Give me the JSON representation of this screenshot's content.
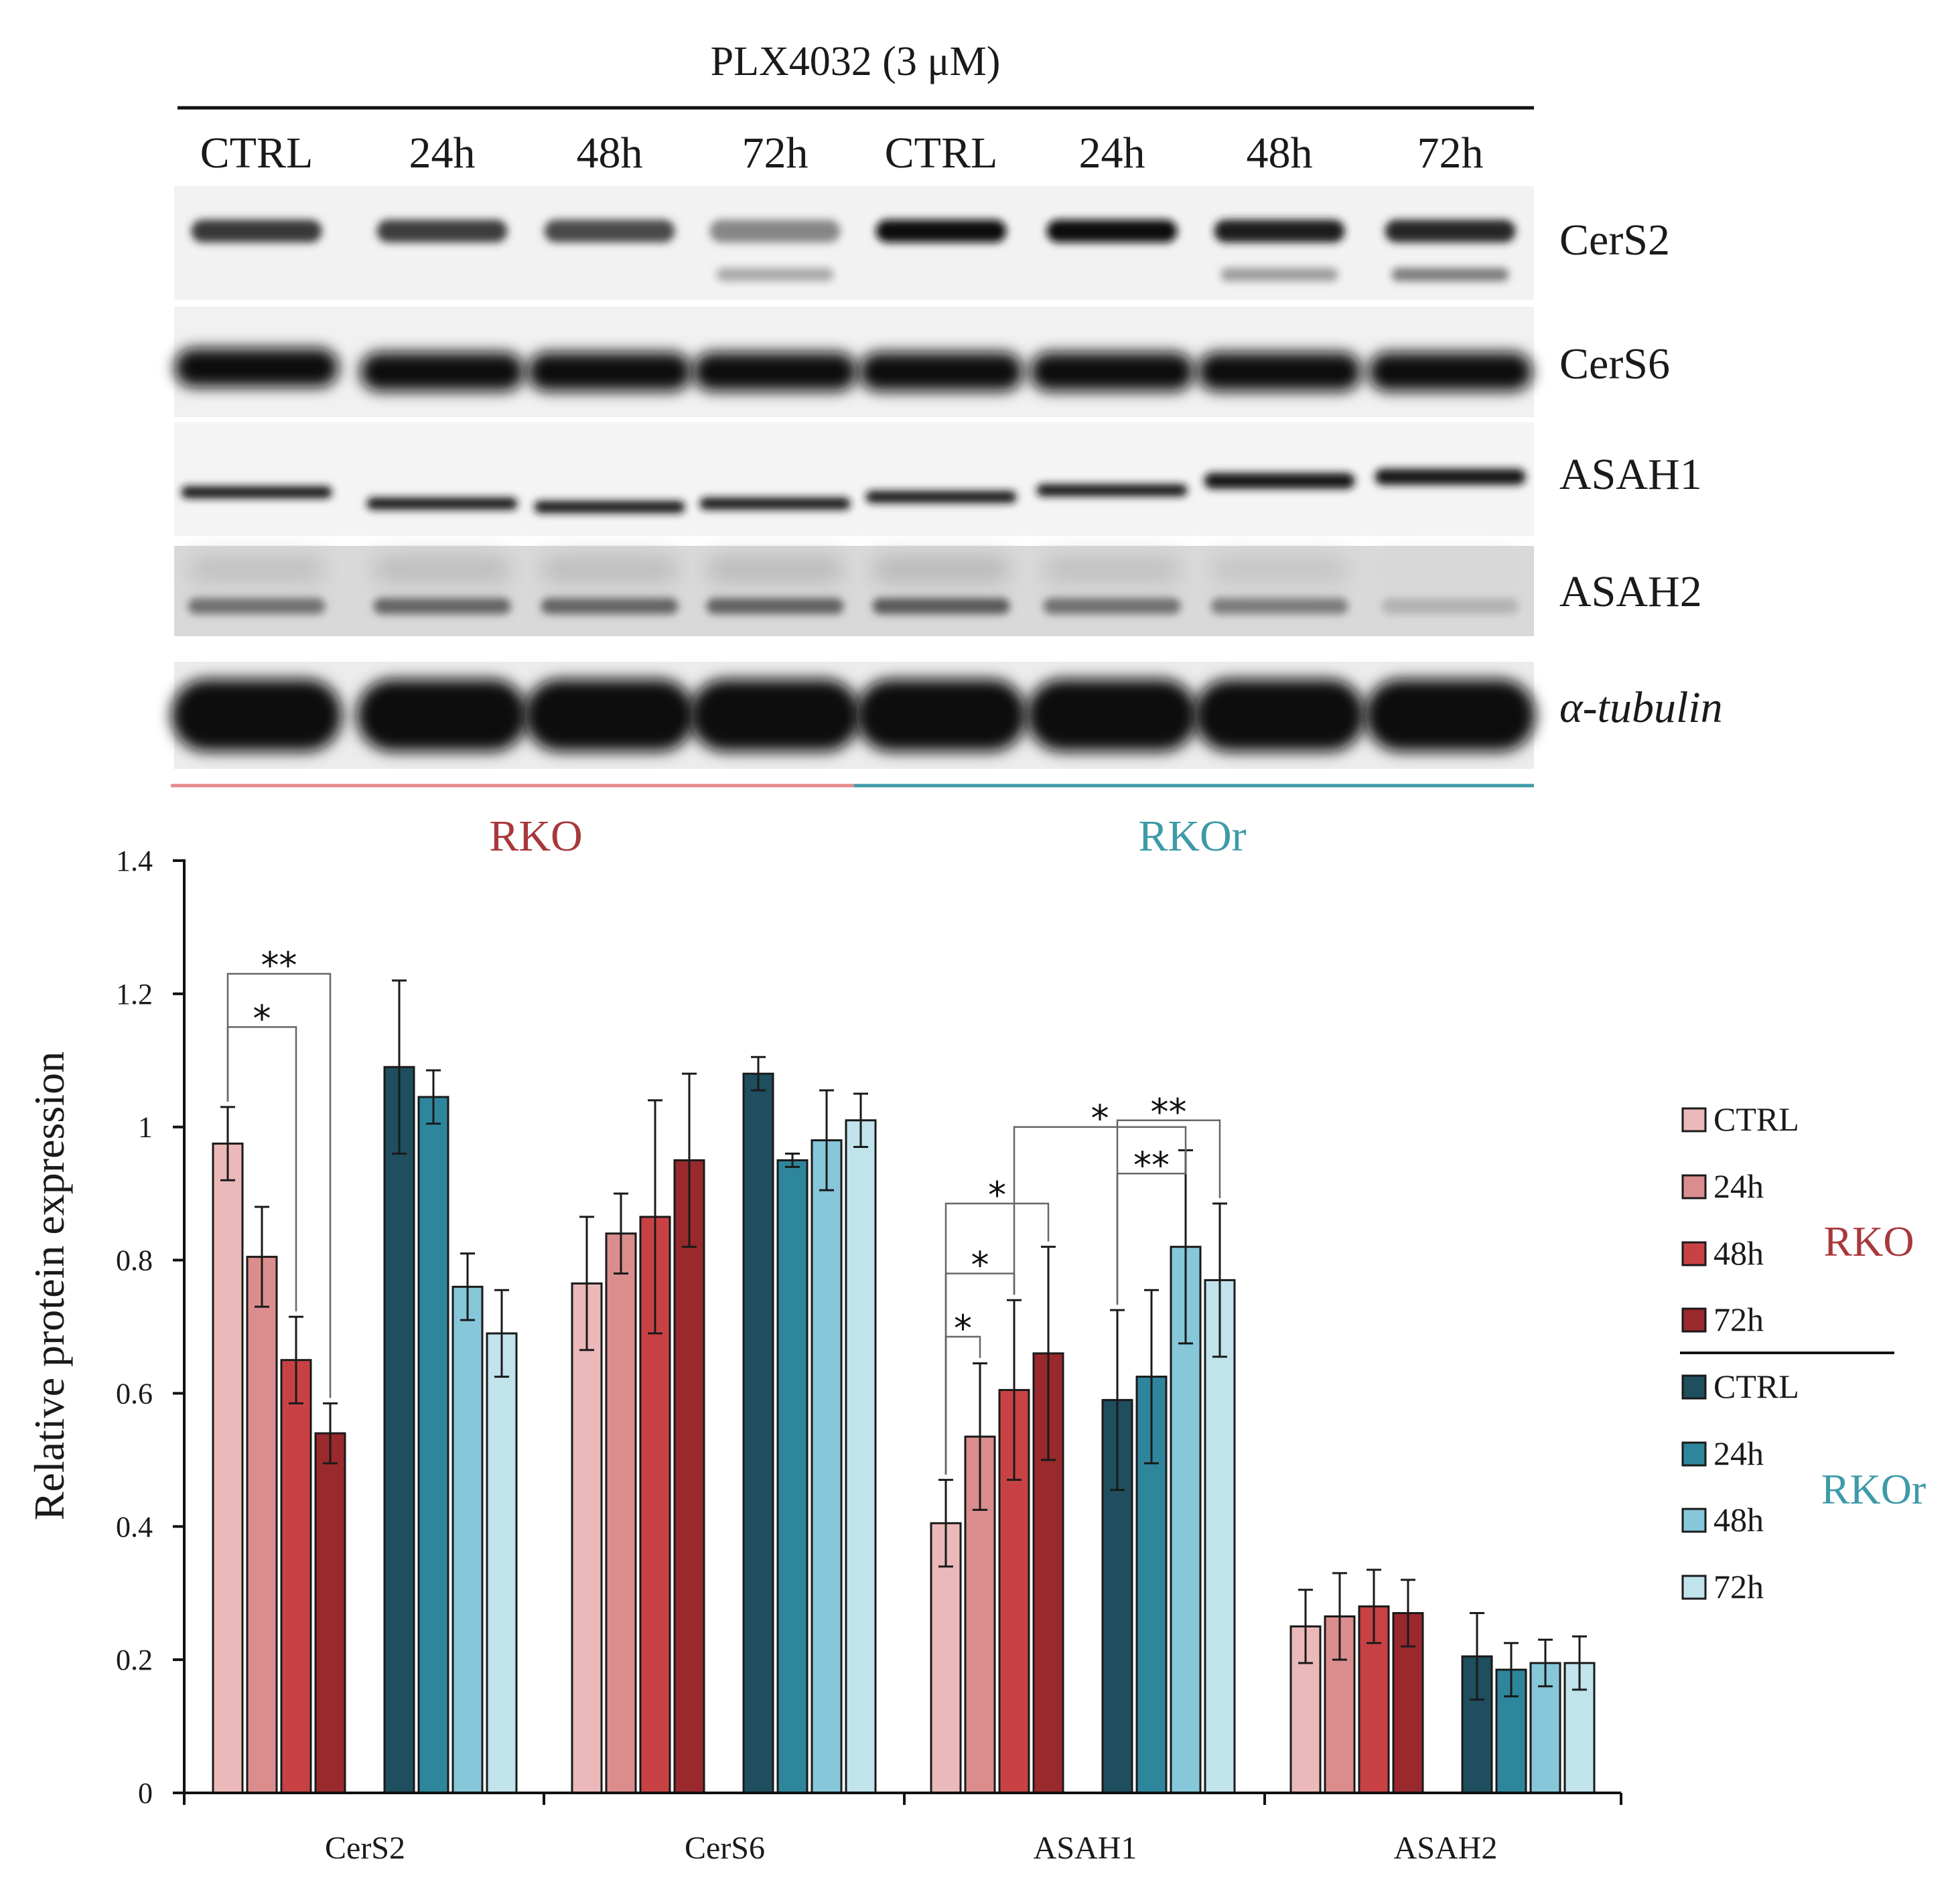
{
  "blot": {
    "treatment_label": "PLX4032 (3 μM)",
    "lane_labels": [
      "CTRL",
      "24h",
      "48h",
      "72h",
      "CTRL",
      "24h",
      "48h",
      "72h"
    ],
    "rows": [
      {
        "name": "CerS2",
        "kind": "cers2"
      },
      {
        "name": "CerS6",
        "kind": "cers6"
      },
      {
        "name": "ASAH1",
        "kind": "asah1"
      },
      {
        "name": "ASAH2",
        "kind": "asah2"
      },
      {
        "name": "α-tubulin",
        "kind": "tubulin"
      }
    ],
    "intensity": {
      "cers2": [
        0.8,
        0.78,
        0.72,
        0.45,
        0.97,
        0.97,
        0.93,
        0.88
      ],
      "cers2_lower": [
        0.0,
        0.0,
        0.0,
        0.3,
        0.0,
        0.0,
        0.35,
        0.5
      ],
      "asah2": [
        0.55,
        0.6,
        0.6,
        0.62,
        0.65,
        0.55,
        0.5,
        0.25
      ]
    },
    "group_labels": [
      {
        "label": "RKO",
        "color": "#a8383c"
      },
      {
        "label": "RKOr",
        "color": "#3e9aa8"
      }
    ]
  },
  "chart_data": {
    "type": "bar",
    "title": "",
    "xlabel": "",
    "ylabel": "Relative protein expression",
    "ylim": [
      0,
      1.4
    ],
    "yticks": [
      "0",
      "0.2",
      "0.4",
      "0.6",
      "0.8",
      "1",
      "1.2",
      "1.4"
    ],
    "categories": [
      "CerS2",
      "CerS6",
      "ASAH1",
      "ASAH2"
    ],
    "series": [
      {
        "name": "CTRL",
        "group": "RKO",
        "color": "#ebb9b9",
        "values": [
          0.975,
          0.765,
          0.405,
          0.25
        ],
        "errors": [
          0.055,
          0.1,
          0.065,
          0.055
        ]
      },
      {
        "name": "24h",
        "group": "RKO",
        "color": "#db8d8e",
        "values": [
          0.805,
          0.84,
          0.535,
          0.265
        ],
        "errors": [
          0.075,
          0.06,
          0.11,
          0.065
        ]
      },
      {
        "name": "48h",
        "group": "RKO",
        "color": "#c84245",
        "values": [
          0.65,
          0.865,
          0.605,
          0.28
        ],
        "errors": [
          0.065,
          0.175,
          0.135,
          0.055
        ]
      },
      {
        "name": "72h",
        "group": "RKO",
        "color": "#99292c",
        "values": [
          0.54,
          0.95,
          0.66,
          0.27
        ],
        "errors": [
          0.045,
          0.13,
          0.16,
          0.05
        ]
      },
      {
        "name": "CTRL",
        "group": "RKOr",
        "color": "#1f4e5e",
        "values": [
          1.09,
          1.08,
          0.59,
          0.205
        ],
        "errors": [
          0.13,
          0.025,
          0.135,
          0.065
        ]
      },
      {
        "name": "24h",
        "group": "RKOr",
        "color": "#2e869c",
        "values": [
          1.045,
          0.95,
          0.625,
          0.185
        ],
        "errors": [
          0.04,
          0.01,
          0.13,
          0.04
        ]
      },
      {
        "name": "48h",
        "group": "RKOr",
        "color": "#86c7d9",
        "values": [
          0.76,
          0.98,
          0.82,
          0.195
        ],
        "errors": [
          0.05,
          0.075,
          0.145,
          0.035
        ]
      },
      {
        "name": "72h",
        "group": "RKOr",
        "color": "#c0e3ec",
        "values": [
          0.69,
          1.01,
          0.77,
          0.195
        ],
        "errors": [
          0.065,
          0.04,
          0.115,
          0.04
        ]
      }
    ],
    "significance": [
      {
        "category": 0,
        "from": 0,
        "to": 2,
        "level": 1.15,
        "label": "*"
      },
      {
        "category": 0,
        "from": 0,
        "to": 3,
        "level": 1.23,
        "label": "**"
      },
      {
        "category": 2,
        "from": 0,
        "to": 1,
        "level": 0.685,
        "label": "*"
      },
      {
        "category": 2,
        "from": 0,
        "to": 2,
        "level": 0.78,
        "label": "*"
      },
      {
        "category": 2,
        "from": 0,
        "to": 3,
        "level": 0.885,
        "label": "*"
      },
      {
        "category": 2,
        "from": 2,
        "to": 6,
        "level": 1.0,
        "label": "*"
      },
      {
        "category": 2,
        "from": 4,
        "to": 6,
        "level": 0.93,
        "label": "**"
      },
      {
        "category": 2,
        "from": 4,
        "to": 7,
        "level": 1.01,
        "label": "**"
      }
    ],
    "legend": {
      "position": "right",
      "groups": [
        {
          "label": "RKO",
          "color": "#a8383c"
        },
        {
          "label": "RKOr",
          "color": "#3e9aa8"
        }
      ]
    }
  }
}
